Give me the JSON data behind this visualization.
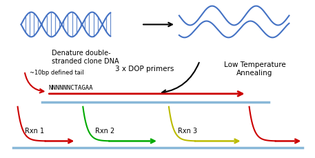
{
  "bg_color": "#ffffff",
  "dna_color": "#4472c4",
  "arrow_color": "#000000",
  "red_color": "#cc0000",
  "green_color": "#00aa00",
  "yellow_color": "#bbbb00",
  "blue_line_color": "#89b8d8",
  "label_denature": "Denature double-\nstranded clone DNA",
  "label_3xDOP": "3 x DOP primers",
  "label_low_temp": "Low Temperature\nAnnealing",
  "label_tail": "~10bp defined tail",
  "label_seq": "NNNNNNCTAGAA",
  "label_rxn1": "Rxn 1",
  "label_rxn2": "Rxn 2",
  "label_rxn3": "Rxn 3",
  "figsize": [
    4.57,
    2.29
  ],
  "dpi": 100
}
